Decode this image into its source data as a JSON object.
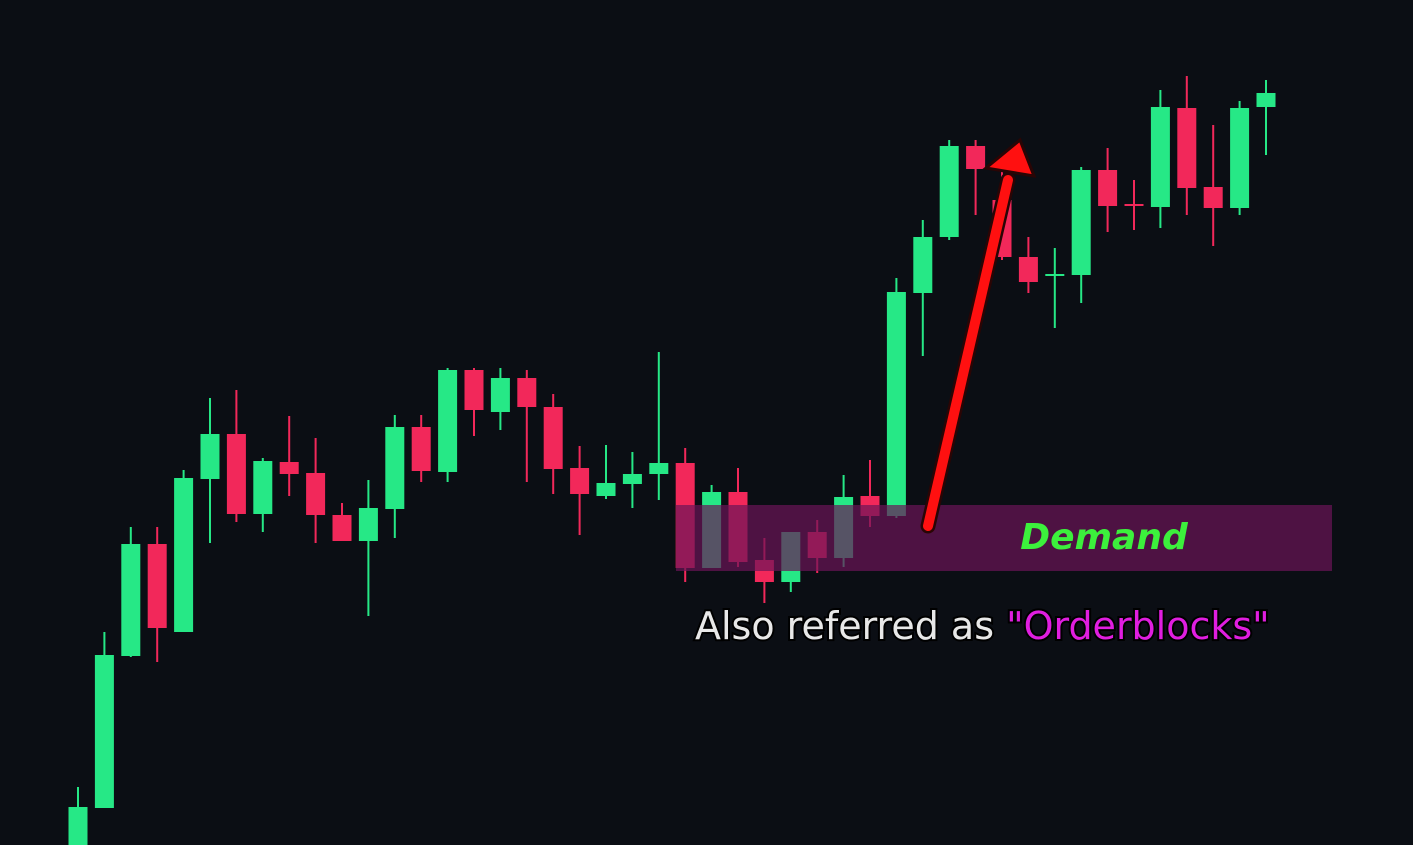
{
  "chart_data": {
    "type": "candlestick",
    "up_color": "#26e886",
    "down_color": "#f2285a",
    "ylim": [
      0,
      845
    ],
    "open": [
      0,
      37,
      189,
      301,
      213,
      366,
      411,
      331,
      383,
      372,
      330,
      304,
      336,
      418,
      373,
      475,
      433,
      467,
      438,
      377,
      349,
      361,
      371,
      382,
      277,
      353,
      285,
      263,
      313,
      287,
      349,
      329,
      552,
      608,
      699,
      645,
      588,
      571,
      570,
      675,
      641,
      638,
      737,
      658,
      637,
      738
    ],
    "high": [
      58,
      213,
      318,
      318,
      375,
      447,
      455,
      387,
      429,
      407,
      342,
      365,
      430,
      430,
      477,
      477,
      477,
      475,
      451,
      399,
      400,
      393,
      493,
      397,
      360,
      377,
      307,
      313,
      325,
      370,
      385,
      567,
      625,
      705,
      705,
      680,
      608,
      597,
      678,
      697,
      665,
      755,
      769,
      720,
      744,
      765
    ],
    "low": [
      0,
      37,
      188,
      183,
      213,
      302,
      323,
      313,
      349,
      302,
      304,
      229,
      307,
      363,
      363,
      409,
      415,
      363,
      351,
      310,
      346,
      337,
      345,
      263,
      277,
      278,
      242,
      253,
      272,
      278,
      318,
      327,
      489,
      605,
      630,
      585,
      552,
      517,
      542,
      613,
      615,
      617,
      630,
      599,
      630,
      690
    ],
    "close": [
      38,
      190,
      301,
      217,
      367,
      411,
      331,
      384,
      371,
      330,
      304,
      337,
      418,
      374,
      475,
      435,
      467,
      438,
      376,
      351,
      362,
      371,
      382,
      277,
      353,
      283,
      263,
      313,
      287,
      348,
      329,
      553,
      608,
      699,
      676,
      588,
      563,
      571,
      675,
      639,
      639,
      738,
      657,
      637,
      737,
      752
    ],
    "zones": [
      {
        "label": "Demand",
        "from": 274,
        "to": 340,
        "color": "#6b1457"
      }
    ],
    "annotation": [
      "Also referred as ",
      "\"Orderblocks\""
    ]
  }
}
